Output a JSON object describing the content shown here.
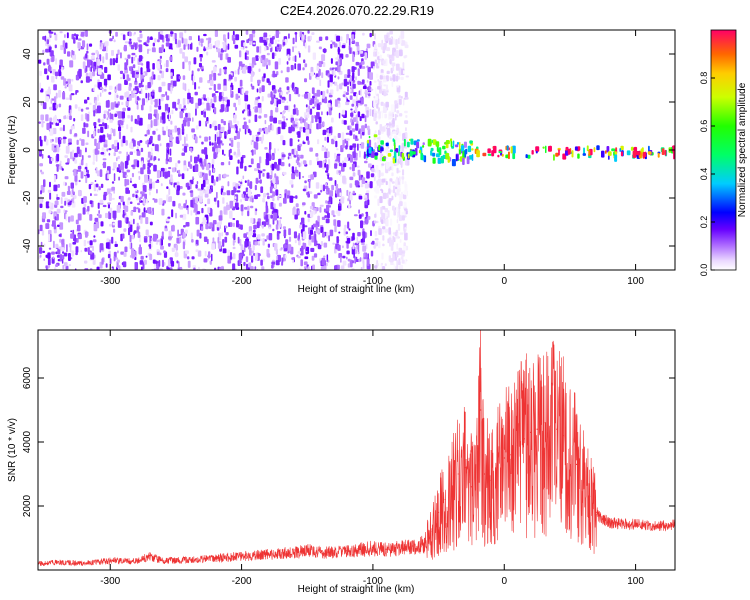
{
  "page": {
    "title": "C2E4.2026.070.22.29.R19"
  },
  "chart_data": [
    {
      "type": "heatmap",
      "xlabel": "Height of straight line (km)",
      "ylabel": "Frequency (Hz)",
      "xlim": [
        -355,
        130
      ],
      "ylim": [
        -50,
        50
      ],
      "xticks": [
        -300,
        -200,
        -100,
        0,
        100
      ],
      "yticks": [
        -40,
        -20,
        0,
        20,
        40
      ],
      "grid": false,
      "colorbar": {
        "label": "Normalized spectral amplitude",
        "range": [
          0,
          1
        ],
        "ticks": [
          0,
          0.2,
          0.4,
          0.6,
          0.8
        ]
      },
      "regions": [
        {
          "x_range": [
            -355,
            -100
          ],
          "y_range": [
            -50,
            50
          ],
          "amplitude": 0.1
        },
        {
          "x_range": [
            -100,
            -75
          ],
          "y_range": [
            -50,
            50
          ],
          "amplitude": 0.03
        },
        {
          "x_range": [
            -105,
            -95
          ],
          "y_range": [
            -2,
            8
          ],
          "amplitude": 0.45
        },
        {
          "x_range": [
            -95,
            -25
          ],
          "y_range": [
            -4,
            5
          ],
          "amplitude": 0.45
        },
        {
          "x_range": [
            -25,
            130
          ],
          "y_range": [
            -2,
            2
          ],
          "amplitude": 0.8
        }
      ]
    },
    {
      "type": "line",
      "xlabel": "Height of straight line (km)",
      "ylabel": "SNR (10 * v/v)",
      "xlim": [
        -355,
        130
      ],
      "ylim": [
        0,
        7500
      ],
      "xticks": [
        -300,
        -200,
        -100,
        0,
        100
      ],
      "yticks": [
        2000,
        4000,
        6000
      ],
      "grid": false,
      "series": [
        {
          "color": "#ee3333",
          "x": [
            -355,
            -340,
            -320,
            -300,
            -280,
            -270,
            -260,
            -240,
            -220,
            -200,
            -180,
            -160,
            -150,
            -140,
            -120,
            -100,
            -90,
            -80,
            -70,
            -60,
            -55,
            -50,
            -45,
            -40,
            -35,
            -30,
            -25,
            -20,
            -18,
            -15,
            -10,
            -5,
            0,
            5,
            10,
            15,
            20,
            25,
            30,
            35,
            40,
            45,
            50,
            55,
            60,
            65,
            70,
            75,
            80,
            90,
            100,
            110,
            120,
            130
          ],
          "y": [
            200,
            250,
            220,
            300,
            280,
            450,
            300,
            320,
            380,
            450,
            500,
            550,
            650,
            550,
            600,
            700,
            650,
            700,
            750,
            850,
            1200,
            1800,
            2200,
            2500,
            3000,
            3200,
            2600,
            3800,
            5000,
            3000,
            2800,
            3200,
            3500,
            3600,
            3900,
            4100,
            4300,
            4400,
            4600,
            4500,
            4400,
            4200,
            3800,
            3300,
            2800,
            2300,
            1800,
            1600,
            1500,
            1450,
            1450,
            1400,
            1400,
            1450
          ]
        }
      ]
    }
  ]
}
